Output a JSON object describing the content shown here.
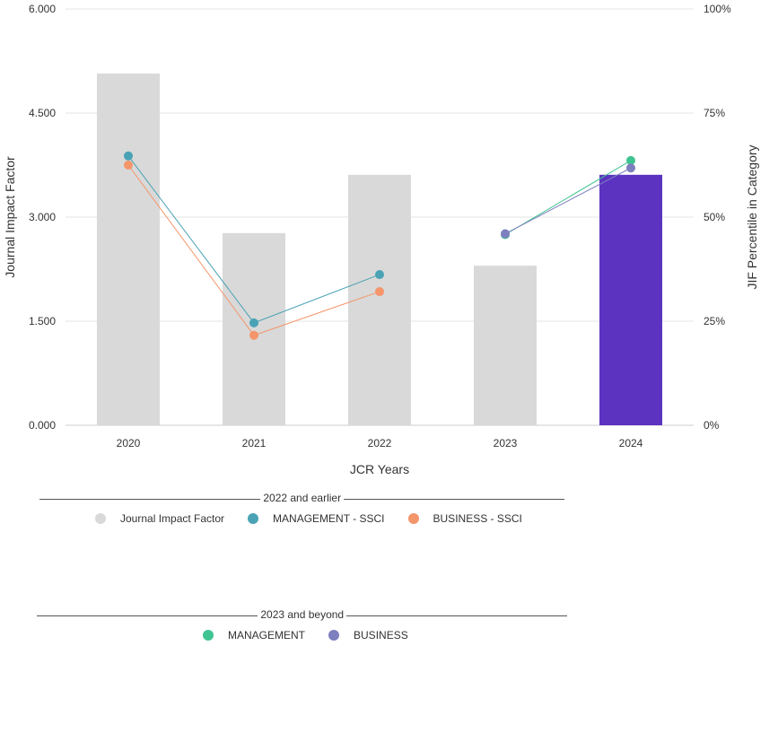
{
  "chart_data": {
    "type": "bar",
    "xlabel": "JCR Years",
    "ylabel": "Journal Impact Factor",
    "y2label": "JIF Percentile in Category",
    "categories": [
      "2020",
      "2021",
      "2022",
      "2023",
      "2024"
    ],
    "ylim": [
      0,
      6
    ],
    "y2lim": [
      0,
      100
    ],
    "yticks": [
      "0.000",
      "1.500",
      "3.000",
      "4.500",
      "6.000"
    ],
    "y2ticks": [
      "0%",
      "25%",
      "50%",
      "75%",
      "100%"
    ],
    "grid": true,
    "bars": {
      "name": "Journal Impact Factor",
      "values": [
        5.07,
        2.77,
        3.61,
        2.3,
        3.61
      ],
      "colors": [
        "#d9d9d9",
        "#d9d9d9",
        "#d9d9d9",
        "#d9d9d9",
        "#5c33c1"
      ]
    },
    "series": [
      {
        "name": "MANAGEMENT - SSCI",
        "color": "#4aa3b5",
        "values": [
          64.7,
          24.6,
          36.2,
          null,
          null
        ]
      },
      {
        "name": "BUSINESS - SSCI",
        "color": "#f4956a",
        "values": [
          62.5,
          21.6,
          32.1,
          null,
          null
        ]
      },
      {
        "name": "MANAGEMENT",
        "color": "#3fc491",
        "values": [
          null,
          null,
          null,
          45.8,
          63.6
        ]
      },
      {
        "name": "BUSINESS",
        "color": "#7d7fbf",
        "values": [
          null,
          null,
          null,
          46.0,
          61.8
        ]
      }
    ]
  },
  "legend": {
    "group1": {
      "header": "2022 and earlier",
      "items": [
        {
          "label": "Journal Impact Factor",
          "color": "#d9d9d9"
        },
        {
          "label": "MANAGEMENT - SSCI",
          "color": "#4aa3b5"
        },
        {
          "label": "BUSINESS - SSCI",
          "color": "#f4956a"
        }
      ]
    },
    "group2": {
      "header": "2023 and beyond",
      "items": [
        {
          "label": "MANAGEMENT",
          "color": "#3fc491"
        },
        {
          "label": "BUSINESS",
          "color": "#7d7fbf"
        }
      ]
    }
  }
}
